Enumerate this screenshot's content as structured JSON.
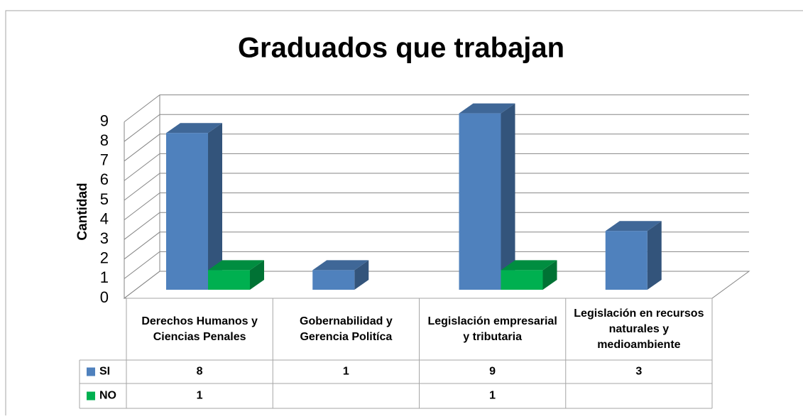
{
  "chart_data": {
    "type": "bar3d",
    "title": "Graduados que trabajan",
    "ylabel": "Cantidad",
    "categories": [
      "Derechos Humanos y Ciencias Penales",
      "Gobernabilidad y Gerencia Politíca",
      "Legislación empresarial y tributaria",
      "Legislación en recursos naturales y medioambiente"
    ],
    "series": [
      {
        "name": "SI",
        "color": "#4f81bd",
        "values": [
          8,
          1,
          9,
          3
        ]
      },
      {
        "name": "NO",
        "color": "#00b050",
        "values": [
          1,
          null,
          1,
          null
        ]
      }
    ],
    "ylim": [
      0,
      9
    ],
    "yticks": [
      0,
      1,
      2,
      3,
      4,
      5,
      6,
      7,
      8,
      9
    ],
    "grid": true,
    "legend": "table"
  }
}
